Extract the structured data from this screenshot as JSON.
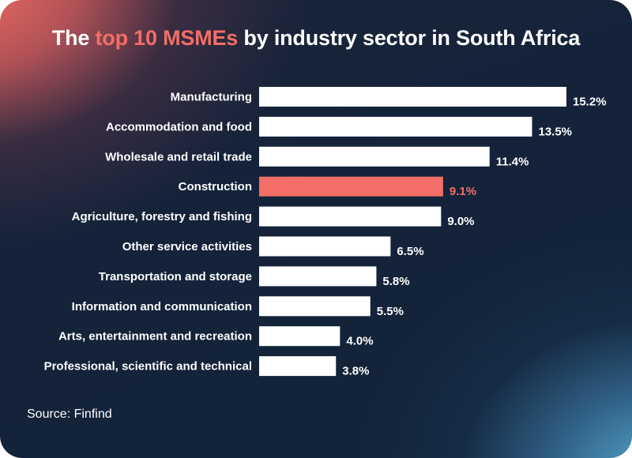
{
  "title": {
    "pre": "The ",
    "highlight": "top 10 MSMEs",
    "post": " by industry sector in South Africa"
  },
  "source": "Source: Finfind",
  "colors": {
    "bar": "#ffffff",
    "highlight": "#f36e66",
    "label": "#ffffff",
    "background": "#13243a"
  },
  "chart_data": {
    "type": "bar",
    "orientation": "horizontal",
    "title": "The top 10 MSMEs by industry sector in South Africa",
    "xlabel": "",
    "ylabel": "",
    "grid": false,
    "xlim": [
      0,
      16.5
    ],
    "categories": [
      "Manufacturing",
      "Accommodation and food",
      "Wholesale and retail trade",
      "Construction",
      "Agriculture, forestry and fishing",
      "Other service activities",
      "Transportation and storage",
      "Information and communication",
      "Arts, entertainment and recreation",
      "Professional, scientific and technical"
    ],
    "values": [
      15.2,
      13.5,
      11.4,
      9.1,
      9.0,
      6.5,
      5.8,
      5.5,
      4.0,
      3.8
    ],
    "value_labels": [
      "15.2%",
      "13.5%",
      "11.4%",
      "9.1%",
      "9.0%",
      "6.5%",
      "5.8%",
      "5.5%",
      "4.0%",
      "3.8%"
    ],
    "highlighted_category": "Construction"
  }
}
